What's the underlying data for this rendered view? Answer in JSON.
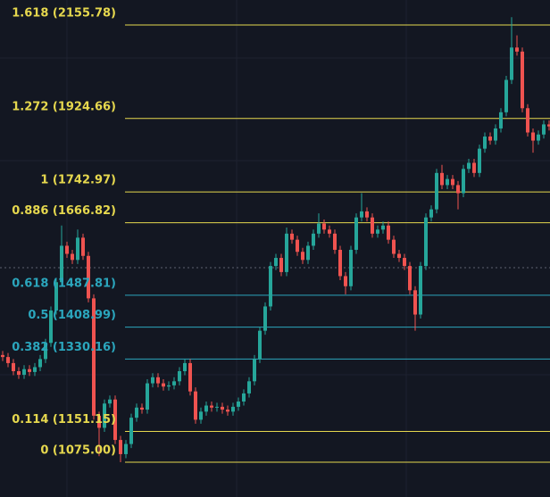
{
  "chart_data": {
    "type": "candlestick",
    "ylim": [
      989,
      2217.5
    ],
    "up_color": "#26a69a",
    "down_color": "#ef5350",
    "fib_levels": [
      {
        "label": "1.618 (2155.78)",
        "price": 2155.78,
        "color": "#e6d84e"
      },
      {
        "label": "1.272 (1924.66)",
        "price": 1924.66,
        "color": "#e6d84e"
      },
      {
        "label": "1 (1742.97)",
        "price": 1742.97,
        "color": "#e6d84e"
      },
      {
        "label": "0.886 (1666.82)",
        "price": 1666.82,
        "color": "#e6d84e"
      },
      {
        "label": "0.618 (1487.81)",
        "price": 1487.81,
        "color": "#2ba6bd"
      },
      {
        "label": "0.5 (1408.99)",
        "price": 1408.99,
        "color": "#2ba6bd"
      },
      {
        "label": "0.382 (1330.16)",
        "price": 1330.16,
        "color": "#2ba6bd"
      },
      {
        "label": "0.114 (1151.15)",
        "price": 1151.15,
        "color": "#e6d84e"
      },
      {
        "label": "0 (1075.00)",
        "price": 1075,
        "color": "#e6d84e"
      }
    ],
    "candles": [
      [
        1340,
        1350,
        1325,
        1335
      ],
      [
        1335,
        1345,
        1310,
        1320
      ],
      [
        1320,
        1330,
        1290,
        1300
      ],
      [
        1300,
        1310,
        1281,
        1291
      ],
      [
        1291,
        1315,
        1281,
        1305
      ],
      [
        1305,
        1315,
        1288,
        1298
      ],
      [
        1298,
        1320,
        1288,
        1310
      ],
      [
        1310,
        1340,
        1300,
        1330
      ],
      [
        1330,
        1380,
        1320,
        1370
      ],
      [
        1370,
        1460,
        1360,
        1450
      ],
      [
        1450,
        1530,
        1440,
        1520
      ],
      [
        1520,
        1660,
        1510,
        1610
      ],
      [
        1610,
        1620,
        1580,
        1590
      ],
      [
        1590,
        1600,
        1565,
        1575
      ],
      [
        1575,
        1650,
        1565,
        1630
      ],
      [
        1630,
        1640,
        1575,
        1585
      ],
      [
        1585,
        1595,
        1470,
        1480
      ],
      [
        1480,
        1490,
        1180,
        1190
      ],
      [
        1190,
        1200,
        1090,
        1160
      ],
      [
        1160,
        1230,
        1150,
        1220
      ],
      [
        1220,
        1240,
        1210,
        1230
      ],
      [
        1230,
        1240,
        1120,
        1130
      ],
      [
        1130,
        1140,
        1075,
        1095
      ],
      [
        1095,
        1130,
        1085,
        1120
      ],
      [
        1120,
        1195,
        1110,
        1185
      ],
      [
        1185,
        1220,
        1175,
        1210
      ],
      [
        1210,
        1220,
        1195,
        1205
      ],
      [
        1205,
        1280,
        1195,
        1270
      ],
      [
        1270,
        1295,
        1260,
        1285
      ],
      [
        1285,
        1295,
        1260,
        1270
      ],
      [
        1270,
        1280,
        1252,
        1262
      ],
      [
        1262,
        1275,
        1252,
        1265
      ],
      [
        1265,
        1285,
        1255,
        1275
      ],
      [
        1275,
        1310,
        1265,
        1300
      ],
      [
        1300,
        1330,
        1290,
        1320
      ],
      [
        1320,
        1330,
        1240,
        1250
      ],
      [
        1250,
        1260,
        1170,
        1180
      ],
      [
        1180,
        1210,
        1170,
        1200
      ],
      [
        1200,
        1225,
        1190,
        1215
      ],
      [
        1215,
        1225,
        1200,
        1210
      ],
      [
        1210,
        1222,
        1200,
        1212
      ],
      [
        1212,
        1222,
        1195,
        1205
      ],
      [
        1205,
        1215,
        1190,
        1200
      ],
      [
        1200,
        1222,
        1190,
        1212
      ],
      [
        1212,
        1235,
        1202,
        1225
      ],
      [
        1225,
        1255,
        1215,
        1245
      ],
      [
        1245,
        1285,
        1235,
        1275
      ],
      [
        1275,
        1340,
        1265,
        1330
      ],
      [
        1330,
        1410,
        1320,
        1400
      ],
      [
        1400,
        1470,
        1390,
        1460
      ],
      [
        1460,
        1570,
        1450,
        1560
      ],
      [
        1560,
        1590,
        1550,
        1580
      ],
      [
        1580,
        1590,
        1535,
        1545
      ],
      [
        1545,
        1655,
        1535,
        1640
      ],
      [
        1640,
        1650,
        1615,
        1625
      ],
      [
        1625,
        1635,
        1585,
        1595
      ],
      [
        1595,
        1605,
        1565,
        1575
      ],
      [
        1575,
        1620,
        1565,
        1610
      ],
      [
        1610,
        1650,
        1600,
        1640
      ],
      [
        1640,
        1690,
        1630,
        1665
      ],
      [
        1665,
        1675,
        1640,
        1650
      ],
      [
        1650,
        1660,
        1630,
        1640
      ],
      [
        1640,
        1650,
        1590,
        1600
      ],
      [
        1600,
        1610,
        1525,
        1535
      ],
      [
        1535,
        1545,
        1490,
        1510
      ],
      [
        1510,
        1610,
        1500,
        1600
      ],
      [
        1600,
        1690,
        1590,
        1680
      ],
      [
        1680,
        1740,
        1670,
        1695
      ],
      [
        1695,
        1705,
        1670,
        1680
      ],
      [
        1680,
        1690,
        1630,
        1640
      ],
      [
        1640,
        1660,
        1630,
        1650
      ],
      [
        1650,
        1670,
        1640,
        1660
      ],
      [
        1660,
        1670,
        1615,
        1625
      ],
      [
        1625,
        1635,
        1580,
        1590
      ],
      [
        1590,
        1600,
        1570,
        1580
      ],
      [
        1580,
        1590,
        1550,
        1560
      ],
      [
        1560,
        1570,
        1490,
        1500
      ],
      [
        1500,
        1510,
        1400,
        1440
      ],
      [
        1440,
        1570,
        1430,
        1560
      ],
      [
        1560,
        1690,
        1550,
        1680
      ],
      [
        1680,
        1710,
        1670,
        1700
      ],
      [
        1700,
        1800,
        1690,
        1790
      ],
      [
        1790,
        1810,
        1750,
        1760
      ],
      [
        1760,
        1785,
        1750,
        1775
      ],
      [
        1775,
        1785,
        1750,
        1760
      ],
      [
        1760,
        1770,
        1700,
        1740
      ],
      [
        1740,
        1810,
        1730,
        1800
      ],
      [
        1800,
        1825,
        1790,
        1815
      ],
      [
        1815,
        1825,
        1780,
        1790
      ],
      [
        1790,
        1860,
        1780,
        1850
      ],
      [
        1850,
        1890,
        1840,
        1880
      ],
      [
        1880,
        1890,
        1860,
        1870
      ],
      [
        1870,
        1910,
        1860,
        1900
      ],
      [
        1900,
        1950,
        1890,
        1940
      ],
      [
        1940,
        2030,
        1930,
        2020
      ],
      [
        2020,
        2175,
        2010,
        2100
      ],
      [
        2100,
        2130,
        2080,
        2090
      ],
      [
        2090,
        2100,
        1940,
        1950
      ],
      [
        1950,
        1960,
        1880,
        1890
      ],
      [
        1890,
        1900,
        1840,
        1870
      ],
      [
        1870,
        1895,
        1860,
        1885
      ],
      [
        1885,
        1920,
        1875,
        1910
      ],
      [
        1910,
        1920,
        1895,
        1905
      ]
    ]
  }
}
